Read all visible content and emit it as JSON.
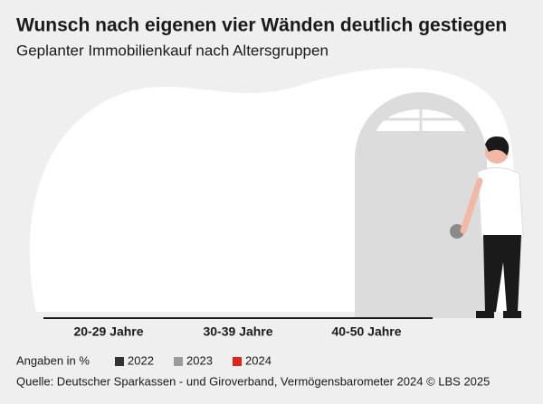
{
  "chart_data": {
    "type": "bar",
    "title": "Wunsch nach eigenen vier Wänden deutlich gestiegen",
    "subtitle": "Geplanter Immobilienkauf nach Altersgruppen",
    "categories": [
      "20-29 Jahre",
      "30-39 Jahre",
      "40-50 Jahre"
    ],
    "unit_note": "Angaben in %",
    "series": [
      {
        "name": "2022",
        "color": "#333333",
        "values": [
          0,
          0,
          0
        ]
      },
      {
        "name": "2023",
        "color": "#9b9b9b",
        "values": [
          0,
          0,
          0
        ]
      },
      {
        "name": "2024",
        "color": "#e2231a",
        "values": [
          0,
          0,
          0
        ]
      }
    ],
    "source": "Quelle: Deutscher Sparkassen - und Giroverband, Vermögensbarometer 2024 © LBS 2025"
  }
}
